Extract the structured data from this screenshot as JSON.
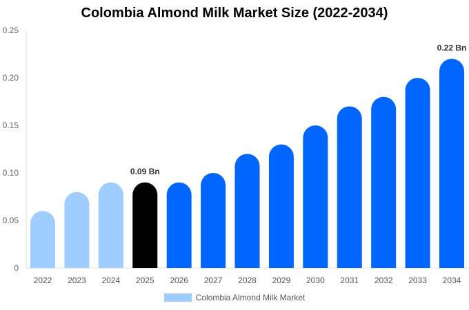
{
  "chart_data": {
    "type": "bar",
    "title": "Colombia Almond Milk Market Size (2022-2034)",
    "xlabel": "",
    "ylabel": "",
    "categories": [
      "2022",
      "2023",
      "2024",
      "2025",
      "2026",
      "2027",
      "2028",
      "2029",
      "2030",
      "2031",
      "2032",
      "2033",
      "2034"
    ],
    "series": [
      {
        "name": "Colombia Almond Milk Market",
        "values": [
          0.06,
          0.08,
          0.09,
          0.09,
          0.09,
          0.1,
          0.12,
          0.13,
          0.15,
          0.17,
          0.18,
          0.2,
          0.22
        ]
      }
    ],
    "ylim": [
      0,
      0.25
    ],
    "yticks": [
      "0",
      "0.05",
      "0.10",
      "0.15",
      "0.20",
      "0.25"
    ],
    "data_labels": {
      "2025": "0.09 Bn",
      "2034": "0.22 Bn"
    },
    "bar_colors": {
      "historical": "#a0cdff",
      "current": "#000000",
      "forecast": "#0066ff"
    },
    "grid": false,
    "legend_position": "bottom"
  }
}
